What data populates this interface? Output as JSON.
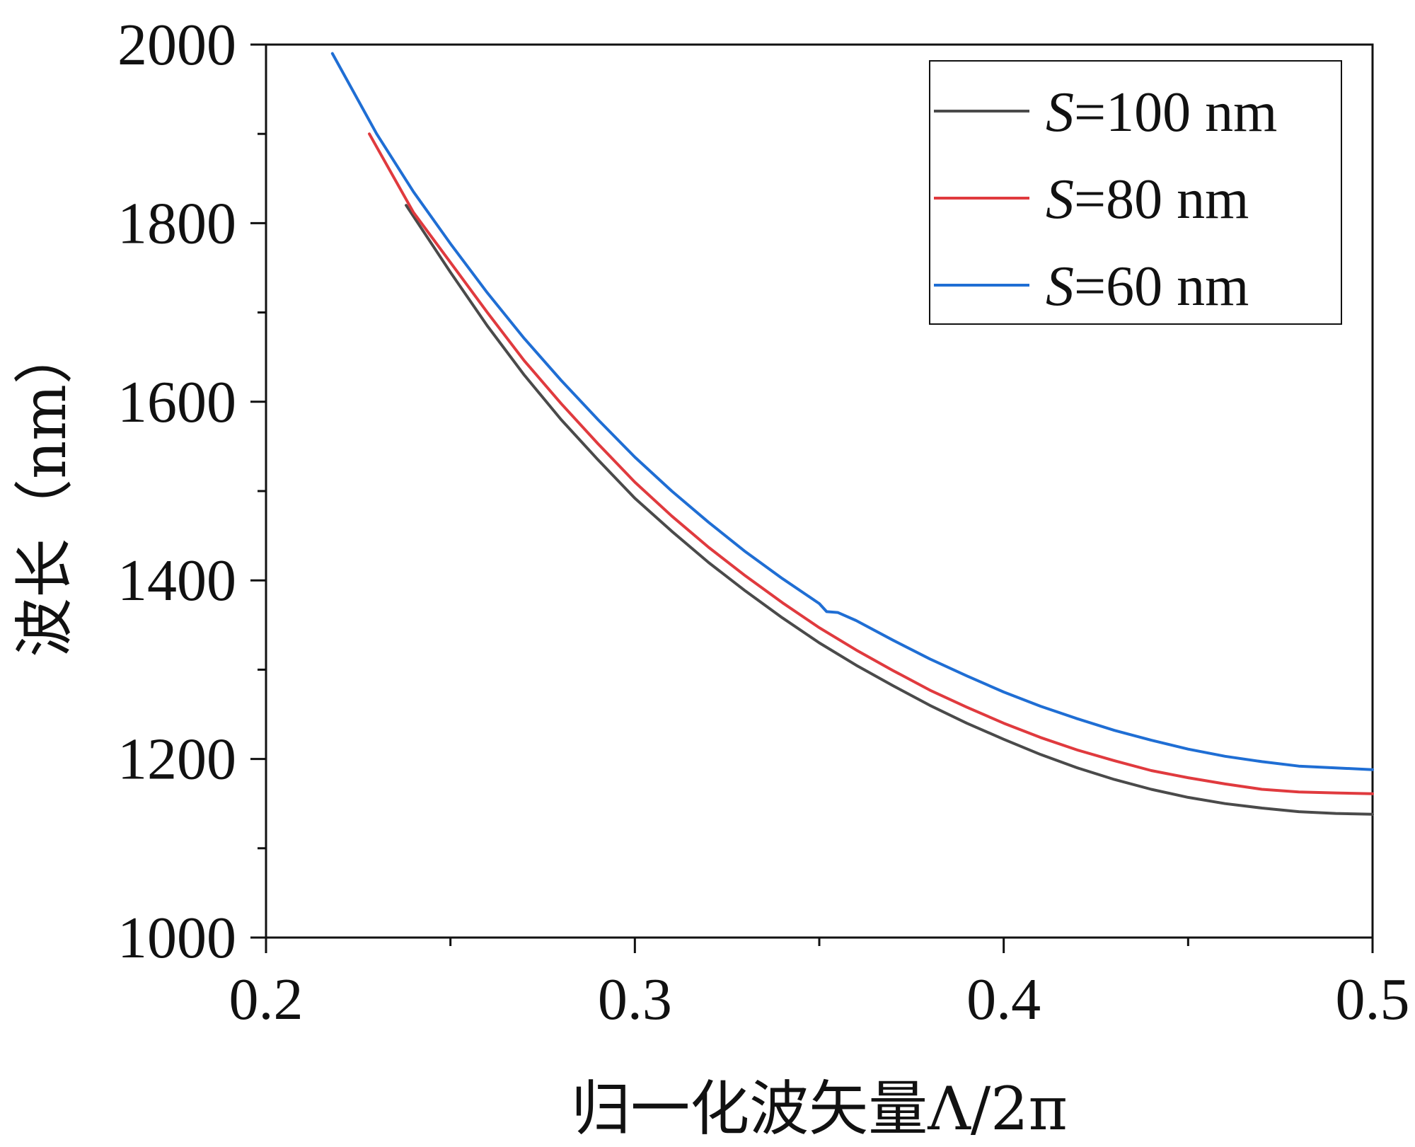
{
  "chart_data": {
    "type": "line",
    "xlabel": "归一化波矢量Λ/2π",
    "ylabel": "波长（nm）",
    "xlim": [
      0.2,
      0.5
    ],
    "ylim": [
      1000,
      2000
    ],
    "x_ticks": [
      "0.2",
      "0.3",
      "0.4",
      "0.5"
    ],
    "y_ticks": [
      "1000",
      "1200",
      "1400",
      "1600",
      "1800",
      "2000"
    ],
    "grid": false,
    "legend_position": "top-right",
    "series": [
      {
        "name": "S=100 nm",
        "legend_italic": "S",
        "legend_rest": "=100 nm",
        "color": "#4a4a4a",
        "x": [
          0.238,
          0.25,
          0.26,
          0.27,
          0.28,
          0.29,
          0.3,
          0.31,
          0.32,
          0.33,
          0.34,
          0.35,
          0.36,
          0.37,
          0.38,
          0.39,
          0.4,
          0.41,
          0.42,
          0.43,
          0.44,
          0.45,
          0.46,
          0.47,
          0.48,
          0.49,
          0.5
        ],
        "y": [
          1820,
          1745,
          1685,
          1630,
          1580,
          1535,
          1492,
          1455,
          1420,
          1388,
          1358,
          1330,
          1305,
          1282,
          1260,
          1240,
          1222,
          1205,
          1190,
          1177,
          1166,
          1157,
          1150,
          1145,
          1141,
          1139,
          1138
        ]
      },
      {
        "name": "S=80 nm",
        "legend_italic": "S",
        "legend_rest": "=80 nm",
        "color": "#e03a3e",
        "x": [
          0.228,
          0.24,
          0.25,
          0.26,
          0.27,
          0.28,
          0.29,
          0.3,
          0.31,
          0.32,
          0.33,
          0.34,
          0.35,
          0.36,
          0.37,
          0.38,
          0.39,
          0.4,
          0.41,
          0.42,
          0.43,
          0.44,
          0.45,
          0.46,
          0.47,
          0.48,
          0.49,
          0.5
        ],
        "y": [
          1900,
          1812,
          1756,
          1700,
          1646,
          1598,
          1553,
          1510,
          1472,
          1437,
          1405,
          1375,
          1347,
          1322,
          1299,
          1277,
          1258,
          1240,
          1224,
          1210,
          1198,
          1187,
          1179,
          1172,
          1166,
          1163,
          1162,
          1161
        ]
      },
      {
        "name": "S=60 nm",
        "legend_italic": "S",
        "legend_rest": "=60 nm",
        "color": "#1f6ed4",
        "x": [
          0.218,
          0.23,
          0.24,
          0.25,
          0.26,
          0.27,
          0.28,
          0.29,
          0.3,
          0.31,
          0.32,
          0.33,
          0.34,
          0.35,
          0.352,
          0.355,
          0.36,
          0.37,
          0.38,
          0.39,
          0.4,
          0.41,
          0.42,
          0.43,
          0.44,
          0.45,
          0.46,
          0.47,
          0.48,
          0.49,
          0.5
        ],
        "y": [
          1990,
          1900,
          1835,
          1777,
          1722,
          1671,
          1624,
          1580,
          1538,
          1500,
          1465,
          1432,
          1402,
          1374,
          1365,
          1364,
          1355,
          1333,
          1312,
          1293,
          1275,
          1259,
          1245,
          1232,
          1221,
          1211,
          1203,
          1197,
          1192,
          1190,
          1188
        ]
      }
    ]
  }
}
